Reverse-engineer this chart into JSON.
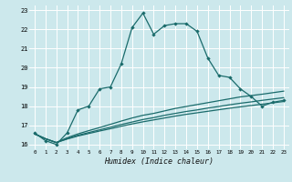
{
  "xlabel": "Humidex (Indice chaleur)",
  "bg_color": "#cce8ec",
  "grid_color": "#ffffff",
  "line_color": "#1a6b6b",
  "xlim": [
    -0.5,
    23.5
  ],
  "ylim": [
    15.75,
    23.25
  ],
  "xticks": [
    0,
    1,
    2,
    3,
    4,
    5,
    6,
    7,
    8,
    9,
    10,
    11,
    12,
    13,
    14,
    15,
    16,
    17,
    18,
    19,
    20,
    21,
    22,
    23
  ],
  "yticks": [
    16,
    17,
    18,
    19,
    20,
    21,
    22,
    23
  ],
  "line1_x": [
    0,
    1,
    2,
    3,
    4,
    5,
    6,
    7,
    8,
    9,
    10,
    11,
    12,
    13,
    14,
    15,
    16,
    17,
    18,
    19,
    20,
    21,
    22,
    23
  ],
  "line1_y": [
    16.6,
    16.2,
    16.0,
    16.6,
    17.8,
    18.0,
    18.9,
    19.0,
    20.2,
    22.1,
    22.85,
    21.75,
    22.2,
    22.3,
    22.3,
    21.9,
    20.5,
    19.6,
    19.5,
    18.9,
    18.5,
    18.0,
    18.2,
    18.3
  ],
  "line2_x": [
    0,
    1,
    2,
    3,
    4,
    5,
    6,
    7,
    8,
    9,
    10,
    11,
    12,
    13,
    14,
    15,
    16,
    17,
    18,
    19,
    20,
    21,
    22,
    23
  ],
  "line2_y": [
    16.55,
    16.3,
    16.1,
    16.35,
    16.55,
    16.72,
    16.88,
    17.05,
    17.22,
    17.38,
    17.52,
    17.62,
    17.75,
    17.88,
    17.98,
    18.08,
    18.18,
    18.28,
    18.38,
    18.48,
    18.55,
    18.62,
    18.7,
    18.78
  ],
  "line3_x": [
    0,
    1,
    2,
    3,
    4,
    5,
    6,
    7,
    8,
    9,
    10,
    11,
    12,
    13,
    14,
    15,
    16,
    17,
    18,
    19,
    20,
    21,
    22,
    23
  ],
  "line3_y": [
    16.55,
    16.3,
    16.1,
    16.3,
    16.48,
    16.62,
    16.76,
    16.9,
    17.04,
    17.17,
    17.3,
    17.4,
    17.52,
    17.62,
    17.72,
    17.8,
    17.9,
    17.98,
    18.07,
    18.15,
    18.22,
    18.3,
    18.37,
    18.44
  ],
  "line4_x": [
    0,
    1,
    2,
    3,
    4,
    5,
    6,
    7,
    8,
    9,
    10,
    11,
    12,
    13,
    14,
    15,
    16,
    17,
    18,
    19,
    20,
    21,
    22,
    23
  ],
  "line4_y": [
    16.55,
    16.3,
    16.1,
    16.28,
    16.44,
    16.57,
    16.7,
    16.82,
    16.95,
    17.07,
    17.18,
    17.28,
    17.38,
    17.48,
    17.57,
    17.65,
    17.73,
    17.81,
    17.89,
    17.96,
    18.03,
    18.1,
    18.17,
    18.24
  ]
}
